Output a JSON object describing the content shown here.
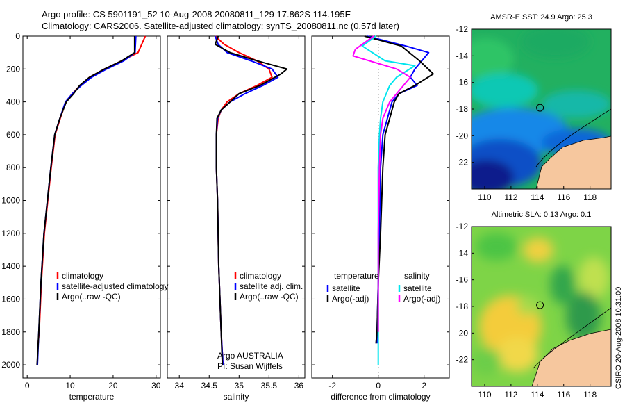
{
  "header": {
    "line1": "Argo profile: CS 5901191_52 10-Aug-2008 20080811_129 17.862S 114.195E",
    "line2": "Climatology: CARS2006. Satellite-adjusted climatology: synTS_20080811.nc (0.57d later)"
  },
  "signature": "CSIRO 20-Aug-2008 10:31:00",
  "colors": {
    "climatology": "#ff0000",
    "satellite": "#0000ff",
    "argo": "#000000",
    "salinity_satellite": "#00e5ee",
    "salinity_argo": "#ff00ff",
    "land": "#f6c79e"
  },
  "chart_data": [
    {
      "type": "line",
      "xlabel": "temperature",
      "ylabel": "",
      "xlim": [
        -1,
        31
      ],
      "ylim": [
        0,
        2080
      ],
      "y_reversed": true,
      "xticks": [
        0,
        10,
        20,
        30
      ],
      "yticks": [
        0,
        200,
        400,
        600,
        800,
        1000,
        1200,
        1400,
        1600,
        1800,
        2000
      ],
      "series": [
        {
          "name": "climatology",
          "color": "#ff0000",
          "x": [
            27.5,
            25.8,
            22.0,
            18.0,
            14.5,
            12.3,
            10.5,
            9.0,
            7.7,
            6.5,
            5.6,
            4.8,
            4.0,
            3.3,
            2.8,
            2.5
          ],
          "y": [
            0,
            100,
            150,
            200,
            250,
            300,
            350,
            400,
            500,
            600,
            800,
            1000,
            1200,
            1500,
            1800,
            1880
          ]
        },
        {
          "name": "satellite-adjusted climatology",
          "color": "#0000ff",
          "x": [
            25.3,
            25.1,
            22.5,
            18.5,
            15.0,
            12.6,
            10.5,
            8.9,
            7.6,
            6.4,
            5.5,
            4.7,
            3.9,
            3.2,
            2.7,
            2.4
          ],
          "y": [
            0,
            100,
            150,
            200,
            250,
            300,
            350,
            400,
            500,
            600,
            800,
            1000,
            1200,
            1500,
            1800,
            2000
          ]
        },
        {
          "name": "Argo(..raw -QC)",
          "color": "#000000",
          "x": [
            25.0,
            25.0,
            22.0,
            18.0,
            14.5,
            12.2,
            10.8,
            9.1,
            7.6,
            6.4,
            5.5,
            4.7,
            3.9,
            3.2,
            2.7,
            2.3
          ],
          "y": [
            0,
            100,
            150,
            200,
            250,
            300,
            350,
            400,
            500,
            600,
            800,
            1000,
            1200,
            1500,
            1800,
            2000
          ]
        }
      ],
      "legend": [
        "climatology",
        "satellite-adjusted climatology",
        "Argo(..raw -QC)"
      ],
      "legend_position": "lower-middle"
    },
    {
      "type": "line",
      "xlabel": "salinity",
      "ylabel": "",
      "xlim": [
        33.8,
        36.1
      ],
      "ylim": [
        0,
        2080
      ],
      "y_reversed": true,
      "xticks": [
        34,
        34.5,
        35,
        35.5,
        36
      ],
      "series": [
        {
          "name": "climatology",
          "color": "#ff0000",
          "x": [
            34.6,
            34.75,
            35.0,
            35.3,
            35.5,
            35.55,
            35.3,
            35.0,
            34.8,
            34.7,
            34.65,
            34.62,
            34.62,
            34.64,
            34.66,
            34.7,
            34.73
          ],
          "y": [
            0,
            50,
            100,
            150,
            200,
            250,
            300,
            350,
            400,
            450,
            500,
            600,
            800,
            1000,
            1400,
            1800,
            2000
          ]
        },
        {
          "name": "satellite adj. clim.",
          "color": "#0000ff",
          "x": [
            34.6,
            34.65,
            34.8,
            35.2,
            35.55,
            35.65,
            35.4,
            35.1,
            34.85,
            34.7,
            34.64,
            34.62,
            34.62,
            34.64,
            34.66,
            34.7,
            34.73
          ],
          "y": [
            0,
            50,
            100,
            150,
            200,
            250,
            300,
            350,
            400,
            450,
            500,
            600,
            800,
            1000,
            1400,
            1800,
            2000
          ]
        },
        {
          "name": "Argo(..raw -QC)",
          "color": "#000000",
          "x": [
            34.65,
            34.6,
            34.85,
            35.3,
            35.8,
            35.7,
            35.35,
            35.0,
            34.85,
            34.7,
            34.63,
            34.62,
            34.62,
            34.64,
            34.66,
            34.7,
            34.72
          ],
          "y": [
            0,
            50,
            100,
            150,
            200,
            230,
            300,
            350,
            400,
            450,
            500,
            600,
            800,
            1000,
            1400,
            1800,
            2000
          ]
        }
      ],
      "legend": [
        "climatology",
        "satellite adj. clim.",
        "Argo(..raw -QC)"
      ],
      "annotation": [
        "Argo AUSTRALIA",
        "PI: Susan Wijffels"
      ]
    },
    {
      "type": "line",
      "xlabel": "difference from climatology",
      "ylabel": "",
      "xlim": [
        -2.9,
        3.1
      ],
      "ylim": [
        0,
        2080
      ],
      "y_reversed": true,
      "xticks": [
        -2,
        0,
        2
      ],
      "zero_line": "dotted",
      "series": [
        {
          "name": "temperature satellite",
          "color": "#0000ff",
          "x": [
            -0.5,
            1.2,
            2.2,
            1.6,
            1.4,
            1.7,
            0.9,
            0.6,
            0.4,
            0.2,
            0.1,
            0.05,
            0.0,
            -0.05,
            -0.05
          ],
          "y": [
            0,
            60,
            100,
            200,
            250,
            300,
            350,
            400,
            500,
            600,
            800,
            1200,
            1500,
            1800,
            1870
          ]
        },
        {
          "name": "temperature Argo(-adj)",
          "color": "#000000",
          "x": [
            -0.6,
            1.0,
            1.8,
            2.4,
            1.6,
            0.9,
            0.7,
            0.5,
            0.3,
            0.2,
            0.1,
            0.0,
            -0.05,
            -0.1
          ],
          "y": [
            0,
            60,
            150,
            230,
            300,
            350,
            400,
            500,
            600,
            800,
            1200,
            1500,
            1800,
            1870
          ]
        },
        {
          "name": "salinity satellite",
          "color": "#00e5ee",
          "x": [
            -0.1,
            -0.7,
            0.3,
            1.6,
            0.8,
            0.5,
            0.2,
            0.1,
            0.05,
            0.0,
            0.0,
            0.0,
            0.0
          ],
          "y": [
            0,
            60,
            150,
            180,
            250,
            300,
            400,
            500,
            600,
            800,
            1200,
            1600,
            2000
          ]
        },
        {
          "name": "salinity Argo(-adj)",
          "color": "#ff00ff",
          "x": [
            -0.2,
            -1.0,
            -1.1,
            0.8,
            1.4,
            1.1,
            0.5,
            0.2,
            0.1,
            0.05,
            0.0,
            0.0
          ],
          "y": [
            0,
            80,
            120,
            200,
            250,
            300,
            400,
            500,
            600,
            800,
            1200,
            1800
          ]
        }
      ],
      "legend_groups": [
        {
          "title": "temperature",
          "entries": [
            "satellite",
            "Argo(-adj)"
          ]
        },
        {
          "title": "salinity",
          "entries": [
            "satellite",
            "Argo(-adj)"
          ]
        }
      ]
    },
    {
      "type": "heatmap",
      "title": "AMSR-E SST: 24.9 Argo: 25.3",
      "xlim": [
        109,
        119.6
      ],
      "ylim": [
        -24,
        -12
      ],
      "xticks": [
        110,
        112,
        114,
        116,
        118
      ],
      "yticks": [
        -12,
        -14,
        -16,
        -18,
        -20,
        -22
      ],
      "marker": [
        114.2,
        -17.9
      ]
    },
    {
      "type": "heatmap",
      "title": "Altimetric SLA: 0.13 Argo: 0.1",
      "xlim": [
        109,
        119.6
      ],
      "ylim": [
        -24,
        -12
      ],
      "xticks": [
        110,
        112,
        114,
        116,
        118
      ],
      "yticks": [
        -12,
        -14,
        -16,
        -18,
        -20,
        -22
      ],
      "marker": [
        114.2,
        -17.9
      ]
    }
  ]
}
